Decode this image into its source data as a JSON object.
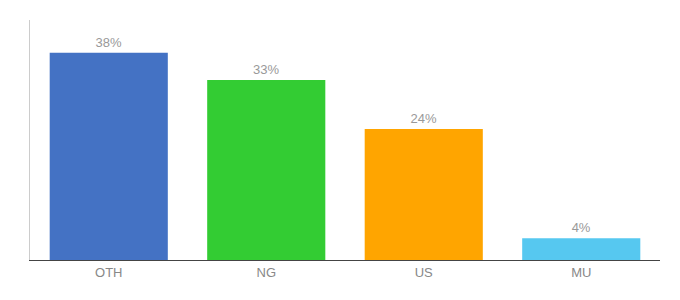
{
  "chart_data": {
    "type": "bar",
    "categories": [
      "OTH",
      "NG",
      "US",
      "MU"
    ],
    "values": [
      38,
      33,
      24,
      4
    ],
    "value_labels": [
      "38%",
      "33%",
      "24%",
      "4%"
    ],
    "data_labels": true,
    "colors": [
      "#4472C4",
      "#33CC33",
      "#FFA500",
      "#56C8F0"
    ],
    "ylim": [
      0,
      44
    ],
    "grid": false,
    "tick_labels": "x"
  }
}
